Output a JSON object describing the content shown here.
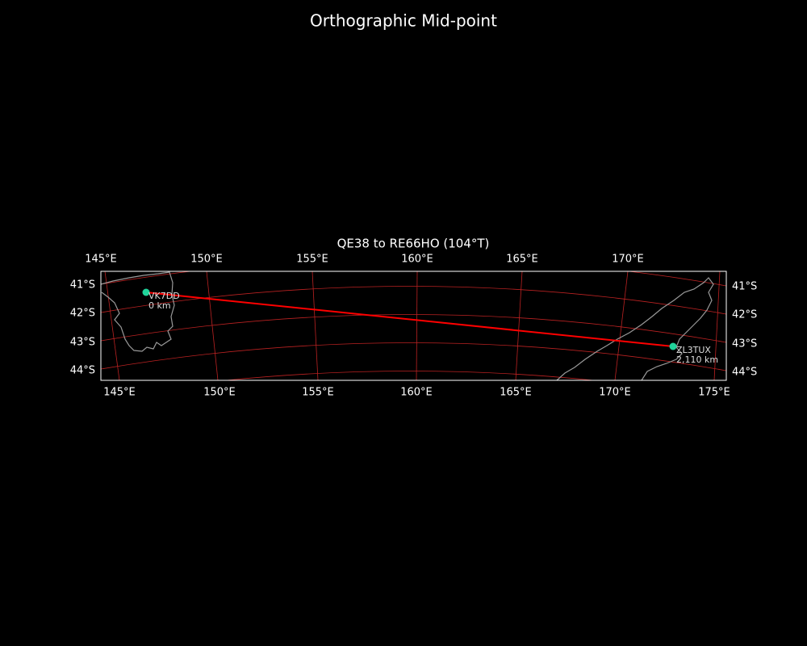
{
  "title": "Orthographic Mid-point",
  "map": {
    "subtitle": "QE38 to RE66HO (104°T)",
    "top_lon_labels": [
      "145°E",
      "150°E",
      "155°E",
      "160°E",
      "165°E",
      "170°E"
    ],
    "bottom_lon_labels": [
      "145°E",
      "150°E",
      "155°E",
      "160°E",
      "165°E",
      "170°E",
      "175°E"
    ],
    "left_lat_labels": [
      "41°S",
      "42°S",
      "43°S",
      "44°S"
    ],
    "right_lat_labels": [
      "41°S",
      "42°S",
      "43°S",
      "44°S"
    ],
    "stations": [
      {
        "name": "VK7DD",
        "distance": "0 km"
      },
      {
        "name": "ZL3TUX",
        "distance": "2,110 km"
      }
    ]
  }
}
